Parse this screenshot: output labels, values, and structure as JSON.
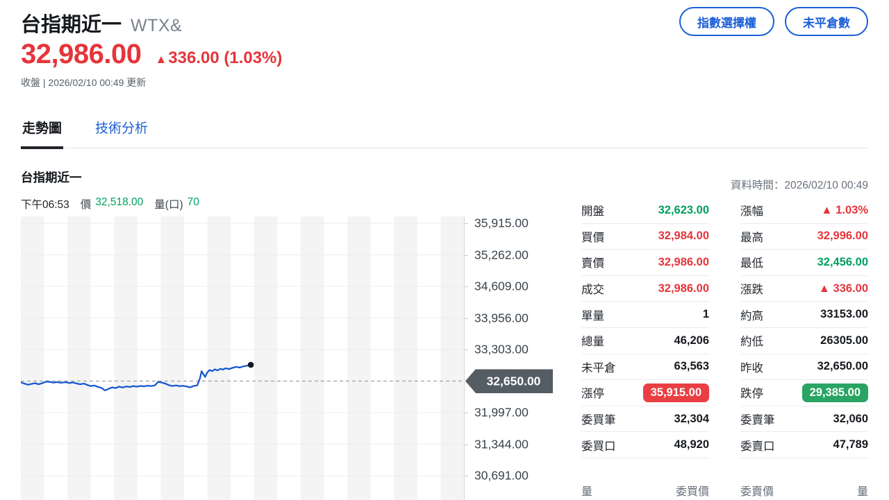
{
  "header": {
    "title": "台指期近一",
    "symbol": "WTX&",
    "price": "32,986.00",
    "change_arrow": "▲",
    "change_text": "336.00 (1.03%)",
    "status": "收盤 | 2026/02/10 00:49 更新",
    "buttons": [
      "指數選擇權",
      "未平倉數"
    ]
  },
  "tabs": {
    "items": [
      {
        "label": "走勢圖",
        "active": true
      },
      {
        "label": "技術分析",
        "active": false
      }
    ]
  },
  "chart_header": {
    "title": "台指期近一",
    "time": "下午06:53",
    "price_label": "價",
    "price": "32,518.00",
    "volume_label": "量(口)",
    "volume": "70",
    "data_time": "資料時間：2026/02/10 00:49"
  },
  "chart_data": {
    "type": "line",
    "title": "台指期近一 intraday price",
    "legend": false,
    "grid": "horizontal lines + alternating vertical bands",
    "y_top_value": 36059,
    "y_bottom_value": 30189,
    "y_ticks": [
      {
        "value": 35915,
        "label": "35,915.00"
      },
      {
        "value": 35262,
        "label": "35,262.00"
      },
      {
        "value": 34609,
        "label": "34,609.00"
      },
      {
        "value": 33956,
        "label": "33,956.00"
      },
      {
        "value": 33303,
        "label": "33,303.00"
      },
      {
        "value": 32650,
        "label": "32,650.00",
        "reference": true
      },
      {
        "value": 31997,
        "label": "31,997.00"
      },
      {
        "value": 31344,
        "label": "31,344.00"
      },
      {
        "value": 30691,
        "label": "30,691.00"
      }
    ],
    "reference_line": {
      "value": 32650,
      "label": "32,650.00",
      "meaning": "昨收",
      "style": "dashed"
    },
    "series": [
      {
        "name": "價",
        "points": [
          [
            0.0,
            32623
          ],
          [
            0.008,
            32598
          ],
          [
            0.016,
            32575
          ],
          [
            0.024,
            32592
          ],
          [
            0.032,
            32608
          ],
          [
            0.04,
            32585
          ],
          [
            0.05,
            32612
          ],
          [
            0.058,
            32640
          ],
          [
            0.066,
            32632
          ],
          [
            0.074,
            32618
          ],
          [
            0.082,
            32630
          ],
          [
            0.09,
            32615
          ],
          [
            0.1,
            32628
          ],
          [
            0.11,
            32610
          ],
          [
            0.118,
            32622
          ],
          [
            0.126,
            32600
          ],
          [
            0.134,
            32585
          ],
          [
            0.142,
            32598
          ],
          [
            0.15,
            32570
          ],
          [
            0.158,
            32545
          ],
          [
            0.166,
            32558
          ],
          [
            0.174,
            32530
          ],
          [
            0.182,
            32510
          ],
          [
            0.19,
            32456
          ],
          [
            0.198,
            32490
          ],
          [
            0.206,
            32520
          ],
          [
            0.214,
            32505
          ],
          [
            0.222,
            32535
          ],
          [
            0.23,
            32515
          ],
          [
            0.238,
            32540
          ],
          [
            0.246,
            32528
          ],
          [
            0.254,
            32545
          ],
          [
            0.262,
            32535
          ],
          [
            0.27,
            32550
          ],
          [
            0.278,
            32542
          ],
          [
            0.286,
            32555
          ],
          [
            0.294,
            32548
          ],
          [
            0.302,
            32558
          ],
          [
            0.31,
            32635
          ],
          [
            0.318,
            32620
          ],
          [
            0.326,
            32598
          ],
          [
            0.334,
            32565
          ],
          [
            0.342,
            32548
          ],
          [
            0.35,
            32560
          ],
          [
            0.358,
            32545
          ],
          [
            0.366,
            32552
          ],
          [
            0.374,
            32538
          ],
          [
            0.382,
            32520
          ],
          [
            0.39,
            32548
          ],
          [
            0.398,
            32560
          ],
          [
            0.404,
            32700
          ],
          [
            0.408,
            32855
          ],
          [
            0.412,
            32790
          ],
          [
            0.416,
            32735
          ],
          [
            0.42,
            32820
          ],
          [
            0.426,
            32880
          ],
          [
            0.432,
            32855
          ],
          [
            0.438,
            32895
          ],
          [
            0.444,
            32870
          ],
          [
            0.45,
            32905
          ],
          [
            0.456,
            32888
          ],
          [
            0.462,
            32915
          ],
          [
            0.47,
            32900
          ],
          [
            0.478,
            32925
          ],
          [
            0.486,
            32945
          ],
          [
            0.494,
            32930
          ],
          [
            0.502,
            32955
          ],
          [
            0.51,
            32968
          ],
          [
            0.519,
            32986
          ]
        ]
      }
    ],
    "last_point": [
      0.519,
      32986
    ]
  },
  "quote_table": {
    "left": [
      {
        "label": "開盤",
        "value": "32,623.00",
        "color": "green"
      },
      {
        "label": "買價",
        "value": "32,984.00",
        "color": "red"
      },
      {
        "label": "賣價",
        "value": "32,986.00",
        "color": "red"
      },
      {
        "label": "成交",
        "value": "32,986.00",
        "color": "red"
      },
      {
        "label": "單量",
        "value": "1",
        "color": "black"
      },
      {
        "label": "總量",
        "value": "46,206",
        "color": "black"
      },
      {
        "label": "未平倉",
        "value": "63,563",
        "color": "black"
      },
      {
        "label": "漲停",
        "value": "35,915.00",
        "badge": "red"
      },
      {
        "label": "委買筆",
        "value": "32,304",
        "color": "black"
      },
      {
        "label": "委買口",
        "value": "48,920",
        "color": "black"
      }
    ],
    "right": [
      {
        "label": "漲幅",
        "value": "▲ 1.03%",
        "color": "red"
      },
      {
        "label": "最高",
        "value": "32,996.00",
        "color": "red"
      },
      {
        "label": "最低",
        "value": "32,456.00",
        "color": "green"
      },
      {
        "label": "漲跌",
        "value": "▲ 336.00",
        "color": "red"
      },
      {
        "label": "約高",
        "value": "33153.00",
        "color": "black"
      },
      {
        "label": "約低",
        "value": "26305.00",
        "color": "black"
      },
      {
        "label": "昨收",
        "value": "32,650.00",
        "color": "black"
      },
      {
        "label": "跌停",
        "value": "29,385.00",
        "badge": "green"
      },
      {
        "label": "委賣筆",
        "value": "32,060",
        "color": "black"
      },
      {
        "label": "委賣口",
        "value": "47,789",
        "color": "black"
      }
    ]
  },
  "orderbook": {
    "headers": [
      "量",
      "委買價",
      "委賣價",
      "量"
    ]
  },
  "colors": {
    "up_red": "#e5353b",
    "down_green": "#00a05e",
    "accent_blue": "#1b5fd8",
    "limit_up_badge": "#e93f43",
    "limit_down_badge": "#2aa463",
    "line_blue": "#1758d0",
    "axis_badge": "#545c64",
    "stripe": "#f4f4f5",
    "gridline": "#ececec",
    "dashed_ref": "#9aa0a6"
  }
}
